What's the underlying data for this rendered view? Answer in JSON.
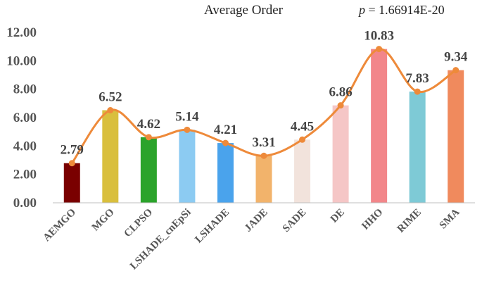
{
  "chart_data": {
    "type": "bar",
    "title": "Average Order",
    "annotation": {
      "symbol": "p",
      "text": " = 1.66914E-20"
    },
    "categories": [
      "AEMGO",
      "MGO",
      "CLPSO",
      "LSHADE_cnEpSi",
      "LSHADE",
      "JADE",
      "SADE",
      "DE",
      "HHO",
      "RIME",
      "SMA"
    ],
    "values": [
      2.79,
      6.52,
      4.62,
      5.14,
      4.21,
      3.31,
      4.45,
      6.86,
      10.83,
      7.83,
      9.34
    ],
    "value_labels": [
      "2.79",
      "6.52",
      "4.62",
      "5.14",
      "4.21",
      "3.31",
      "4.45",
      "6.86",
      "10.83",
      "7.83",
      "9.34"
    ],
    "bar_colors": [
      "#7a0000",
      "#d9bf3d",
      "#2ba32b",
      "#8ccbf2",
      "#4aa3ec",
      "#f2b36b",
      "#f2e3dc",
      "#f5c6c6",
      "#f2868a",
      "#7ecad6",
      "#f08a5d"
    ],
    "line_color": "#ee8a3a",
    "ylim": [
      0,
      12
    ],
    "yticks": [
      0,
      2,
      4,
      6,
      8,
      10,
      12
    ],
    "ytick_labels": [
      "0.00",
      "2.00",
      "4.00",
      "6.00",
      "8.00",
      "10.00",
      "12.00"
    ],
    "grid": false,
    "overlay": "smoothed line with markers through bar tops",
    "xlabel": "",
    "ylabel": ""
  }
}
